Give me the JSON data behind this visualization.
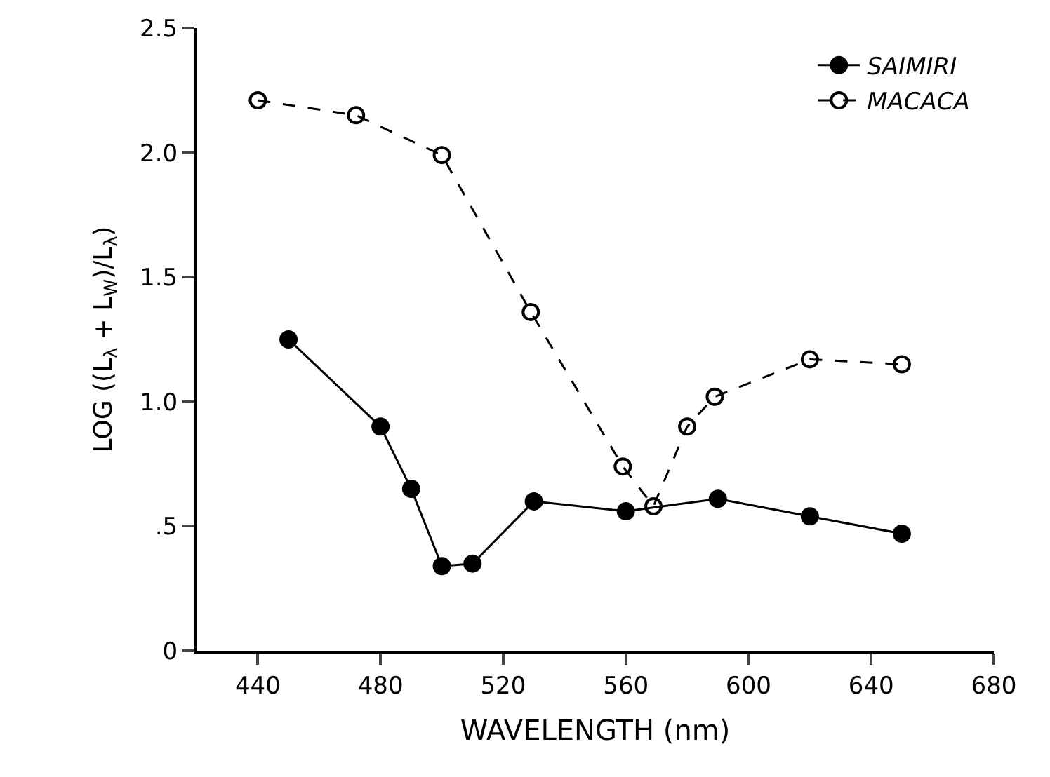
{
  "chart_data": {
    "type": "line",
    "xlabel": "WAVELENGTH (nm)",
    "ylabel": "LOG ((L$_{λ}$ + L$_{W}$)/L$_{λ}$)",
    "xlim": [
      420,
      680
    ],
    "xticks": [
      440,
      480,
      520,
      560,
      600,
      640,
      680
    ],
    "ylim": [
      0,
      2.5
    ],
    "yticks": [
      {
        "value": 0,
        "label": "0"
      },
      {
        "value": 0.5,
        "label": ".5"
      },
      {
        "value": 1,
        "label": "1.0"
      },
      {
        "value": 1.5,
        "label": "1.5"
      },
      {
        "value": 2,
        "label": "2.0"
      },
      {
        "value": 2.5,
        "label": "2.5"
      }
    ],
    "legend": "top right",
    "series": [
      {
        "name": "SAIMIRI",
        "color": "#000000",
        "marker": "circle",
        "line_style": "solid",
        "x": [
          450,
          480,
          490,
          500,
          510,
          530,
          560,
          590,
          620,
          650
        ],
        "values": [
          1.25,
          0.9,
          0.65,
          0.34,
          0.35,
          0.6,
          0.56,
          0.61,
          0.54,
          0.47
        ]
      },
      {
        "name": "MACACA",
        "color": "#000000",
        "marker": "circle-open",
        "line_style": "dashed",
        "x": [
          440,
          472,
          500,
          529,
          559,
          569,
          580,
          589,
          620,
          650
        ],
        "values": [
          2.21,
          2.15,
          1.99,
          1.36,
          0.74,
          0.58,
          0.9,
          1.02,
          1.17,
          1.15
        ]
      }
    ]
  }
}
